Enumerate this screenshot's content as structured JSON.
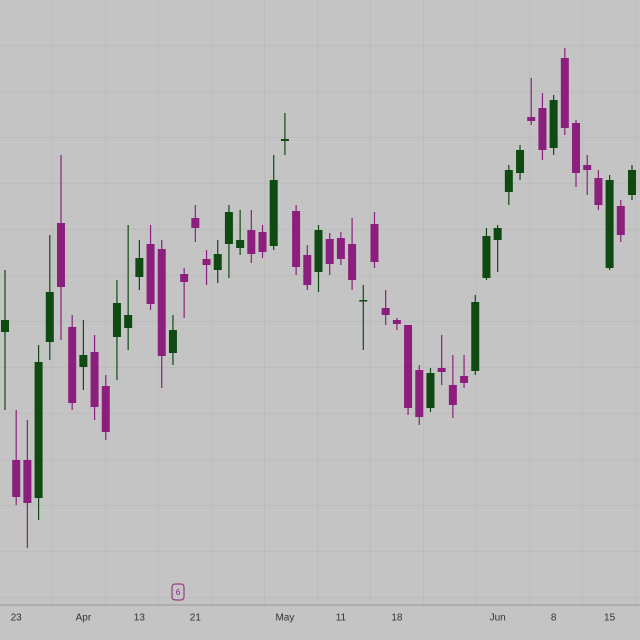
{
  "chart_data": {
    "type": "candlestick",
    "categories": [
      null,
      "23",
      null,
      null,
      null,
      null,
      null,
      "Apr",
      null,
      null,
      null,
      null,
      "13",
      null,
      null,
      null,
      null,
      "21",
      null,
      null,
      null,
      null,
      null,
      null,
      null,
      "May",
      null,
      null,
      null,
      null,
      "11",
      null,
      null,
      null,
      null,
      "18",
      null,
      null,
      null,
      null,
      null,
      null,
      null,
      null,
      "Jun",
      null,
      null,
      null,
      null,
      "8",
      null,
      null,
      null,
      null,
      "15",
      null,
      null
    ],
    "open": [
      268,
      140,
      140,
      102,
      258,
      377,
      273,
      233,
      248,
      214,
      263,
      272,
      323,
      356,
      351,
      247,
      326,
      382,
      341,
      330,
      356,
      352,
      370,
      368,
      354,
      459,
      389,
      345,
      328,
      361,
      362,
      356,
      299,
      376,
      292,
      280,
      275,
      230,
      192,
      232,
      215,
      224,
      229,
      322,
      360,
      408,
      427,
      483,
      492,
      452,
      542,
      477,
      435,
      422,
      332,
      394,
      405
    ],
    "high": [
      330,
      190,
      180,
      255,
      365,
      445,
      285,
      280,
      265,
      225,
      320,
      375,
      360,
      375,
      360,
      285,
      332,
      395,
      350,
      360,
      395,
      390,
      390,
      375,
      445,
      487,
      395,
      355,
      375,
      367,
      368,
      382,
      315,
      388,
      310,
      282,
      275,
      235,
      232,
      265,
      245,
      245,
      305,
      372,
      375,
      435,
      455,
      522,
      507,
      505,
      552,
      480,
      445,
      430,
      425,
      400,
      435
    ],
    "low": [
      190,
      95,
      52,
      80,
      240,
      260,
      190,
      210,
      180,
      160,
      220,
      250,
      310,
      290,
      212,
      235,
      282,
      358,
      315,
      317,
      322,
      345,
      337,
      342,
      350,
      445,
      325,
      310,
      308,
      325,
      335,
      310,
      250,
      332,
      275,
      270,
      185,
      175,
      188,
      215,
      182,
      212,
      225,
      320,
      328,
      395,
      420,
      475,
      440,
      445,
      465,
      413,
      405,
      390,
      330,
      358,
      400
    ],
    "close": [
      280,
      103,
      97,
      238,
      308,
      313,
      197,
      245,
      193,
      168,
      297,
      285,
      342,
      296,
      244,
      270,
      318,
      372,
      335,
      346,
      388,
      360,
      346,
      348,
      420,
      461,
      333,
      315,
      370,
      336,
      341,
      320,
      300,
      338,
      285,
      276,
      192,
      183,
      227,
      228,
      195,
      217,
      298,
      364,
      372,
      430,
      450,
      479,
      450,
      500,
      472,
      427,
      430,
      395,
      420,
      365,
      430
    ],
    "up_color": "#0f4a12",
    "down_color": "#8c1f7e",
    "ylim": [
      0,
      600
    ],
    "event_marker": "6"
  }
}
